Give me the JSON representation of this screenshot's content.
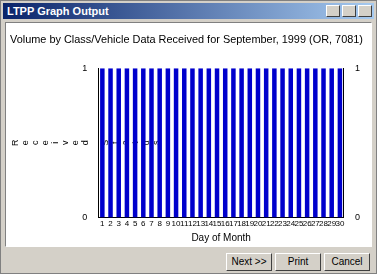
{
  "window": {
    "title": "LTPP Graph Output",
    "buttons": [
      "Next >>",
      "Print",
      "Cancel"
    ]
  },
  "chart_data": {
    "type": "bar",
    "title": "Volume by Class/Vehicle Data Received for September, 1999 (OR, 7081)",
    "x_label": "Day of Month",
    "y_label": "Received Status",
    "categories": [
      "1",
      "2",
      "3",
      "4",
      "5",
      "6",
      "7",
      "8",
      "9",
      "10",
      "11",
      "12",
      "13",
      "14",
      "15",
      "16",
      "17",
      "18",
      "19",
      "20",
      "21",
      "22",
      "23",
      "24",
      "25",
      "26",
      "27",
      "28",
      "29",
      "30"
    ],
    "values": [
      1,
      1,
      1,
      1,
      1,
      1,
      1,
      1,
      1,
      1,
      1,
      1,
      1,
      1,
      1,
      1,
      1,
      1,
      1,
      1,
      1,
      1,
      1,
      1,
      1,
      1,
      1,
      1,
      1,
      1
    ],
    "color": "#0000cc",
    "ylim": [
      0,
      1
    ],
    "yticks": [
      0,
      1
    ],
    "y2lim": [
      0,
      1
    ],
    "y2ticks": [
      0,
      1
    ],
    "grid": false
  }
}
